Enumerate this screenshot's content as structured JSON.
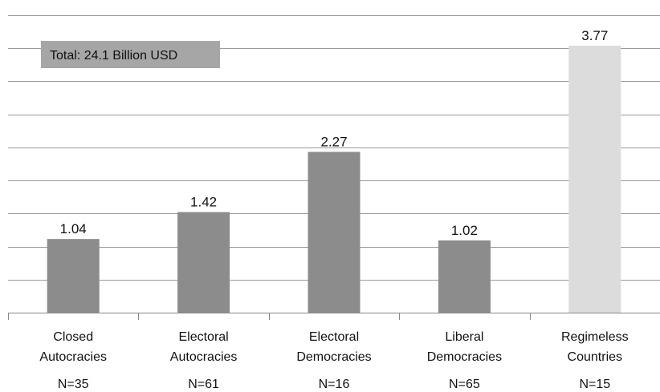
{
  "chart_data": {
    "type": "bar",
    "annotation": "Total: 24.1 Billion USD",
    "categories": [
      [
        "Closed",
        "Autocracies"
      ],
      [
        "Electoral",
        "Autocracies"
      ],
      [
        "Electoral",
        "Democracies"
      ],
      [
        "Liberal",
        "Democracies"
      ],
      [
        "Regimeless",
        "Countries"
      ]
    ],
    "counts": [
      "N=35",
      "N=61",
      "N=16",
      "N=65",
      "N=15"
    ],
    "values": [
      1.04,
      1.42,
      2.27,
      1.02,
      3.77
    ],
    "value_labels": [
      "1.04",
      "1.42",
      "2.27",
      "1.02",
      "3.77"
    ],
    "ylim": [
      0,
      4.2
    ],
    "gridlines": true,
    "gridline_count": 9,
    "y_tick_labels_shown": false,
    "colors": {
      "bar": "#8c8c8c",
      "bar_highlight": "#dcdcdc",
      "highlight_index": 4,
      "annotation_box": "#a6a6a6",
      "grid": "#9a9a9a",
      "axis": "#888888"
    }
  }
}
